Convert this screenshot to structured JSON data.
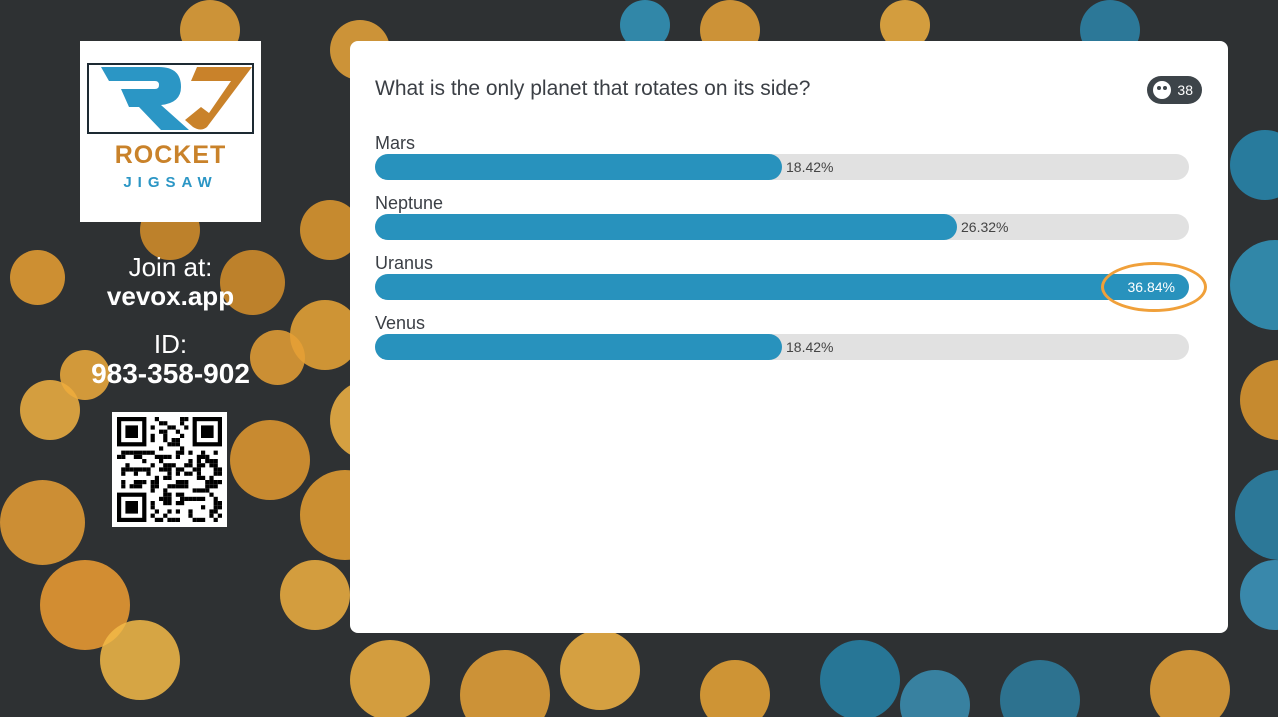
{
  "sidebar": {
    "logo_line1": "ROCKET",
    "logo_line2": "JIGSAW",
    "join_label": "Join at:",
    "join_url": "vevox.app",
    "id_label": "ID:",
    "id_value": "983-358-902"
  },
  "poll": {
    "question": "What is the only planet that rotates on its side?",
    "participant_count": "38",
    "options": [
      {
        "label": "Mars",
        "percent_text": "18.42%",
        "value": 18.42
      },
      {
        "label": "Neptune",
        "percent_text": "26.32%",
        "value": 26.32
      },
      {
        "label": "Uranus",
        "percent_text": "36.84%",
        "value": 36.84,
        "highlighted": true
      },
      {
        "label": "Venus",
        "percent_text": "18.42%",
        "value": 18.42
      }
    ],
    "max_value": 36.84
  },
  "colors": {
    "bar": "#2892bd",
    "track": "#e1e1e1",
    "highlight_ring": "#f0a03a",
    "logo_orange": "#c9822a",
    "logo_blue": "#2b96c5"
  },
  "icons": {
    "participants": "participants-icon",
    "qr": "qr-code-icon"
  }
}
